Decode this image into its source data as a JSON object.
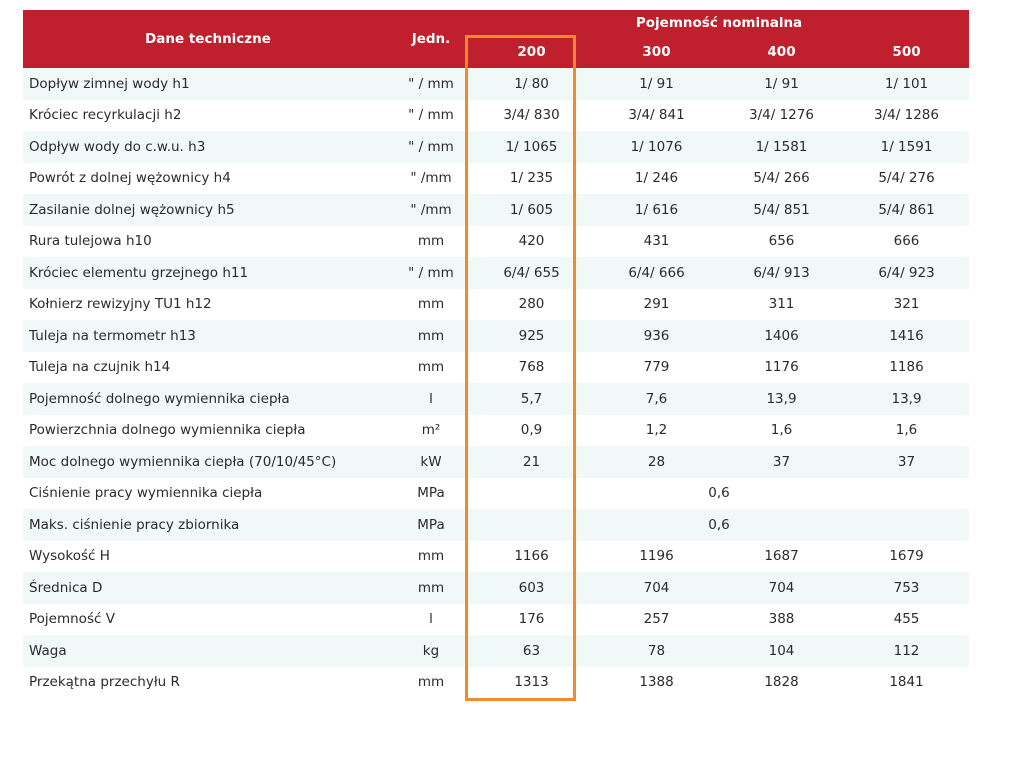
{
  "header": {
    "col_name": "Dane techniczne",
    "col_unit": "Jedn.",
    "group": "Pojemność nominalna",
    "capacities": [
      "200",
      "300",
      "400",
      "500"
    ]
  },
  "rows": [
    {
      "name": "Dopływ zimnej wody h1",
      "unit": "\" / mm",
      "v": [
        "1/ 80",
        "1/ 91",
        "1/ 91",
        "1/ 101"
      ]
    },
    {
      "name": "Króciec recyrkulacji h2",
      "unit": "\" / mm",
      "v": [
        "3/4/ 830",
        "3/4/ 841",
        "3/4/ 1276",
        "3/4/ 1286"
      ]
    },
    {
      "name": "Odpływ wody do c.w.u. h3",
      "unit": "\" / mm",
      "v": [
        "1/ 1065",
        "1/ 1076",
        "1/ 1581",
        "1/ 1591"
      ]
    },
    {
      "name": "Powrót z dolnej wężownicy h4",
      "unit": "\" /mm",
      "v": [
        "1/ 235",
        "1/ 246",
        "5/4/ 266",
        "5/4/ 276"
      ]
    },
    {
      "name": "Zasilanie dolnej wężownicy h5",
      "unit": "\" /mm",
      "v": [
        "1/ 605",
        "1/ 616",
        "5/4/ 851",
        "5/4/ 861"
      ]
    },
    {
      "name": "Rura tulejowa h10",
      "unit": "mm",
      "v": [
        "420",
        "431",
        "656",
        "666"
      ]
    },
    {
      "name": "Króciec elementu grzejnego h11",
      "unit": "\" / mm",
      "v": [
        "6/4/ 655",
        "6/4/ 666",
        "6/4/ 913",
        "6/4/ 923"
      ]
    },
    {
      "name": "Kołnierz rewizyjny TU1 h12",
      "unit": "mm",
      "v": [
        "280",
        "291",
        "311",
        "321"
      ]
    },
    {
      "name": "Tuleja na termometr h13",
      "unit": "mm",
      "v": [
        "925",
        "936",
        "1406",
        "1416"
      ]
    },
    {
      "name": "Tuleja na czujnik h14",
      "unit": "mm",
      "v": [
        "768",
        "779",
        "1176",
        "1186"
      ]
    },
    {
      "name": "Pojemność dolnego wymiennika ciepła",
      "unit": "l",
      "v": [
        "5,7",
        "7,6",
        "13,9",
        "13,9"
      ]
    },
    {
      "name": "Powierzchnia dolnego wymiennika ciepła",
      "unit": "m²",
      "v": [
        "0,9",
        "1,2",
        "1,6",
        "1,6"
      ]
    },
    {
      "name": "Moc dolnego wymiennika ciepła (70/10/45°C)",
      "unit": "kW",
      "v": [
        "21",
        "28",
        "37",
        "37"
      ]
    },
    {
      "name": "Ciśnienie pracy wymiennika ciepła",
      "unit": "MPa",
      "merged": "0,6"
    },
    {
      "name": "Maks. ciśnienie pracy zbiornika",
      "unit": "MPa",
      "merged": "0,6"
    },
    {
      "name": "Wysokość H",
      "unit": "mm",
      "v": [
        "1166",
        "1196",
        "1687",
        "1679"
      ]
    },
    {
      "name": "Średnica D",
      "unit": "mm",
      "v": [
        "603",
        "704",
        "704",
        "753"
      ]
    },
    {
      "name": "Pojemność V",
      "unit": "l",
      "v": [
        "176",
        "257",
        "388",
        "455"
      ]
    },
    {
      "name": "Waga",
      "unit": "kg",
      "v": [
        "63",
        "78",
        "104",
        "112"
      ]
    },
    {
      "name": "Przekątna przechyłu R",
      "unit": "mm",
      "v": [
        "1313",
        "1388",
        "1828",
        "1841"
      ]
    }
  ],
  "colors": {
    "header_bg": "#c0202e",
    "row_alt_bg": "#f1f8f8",
    "highlight_border": "#f08a2c"
  }
}
